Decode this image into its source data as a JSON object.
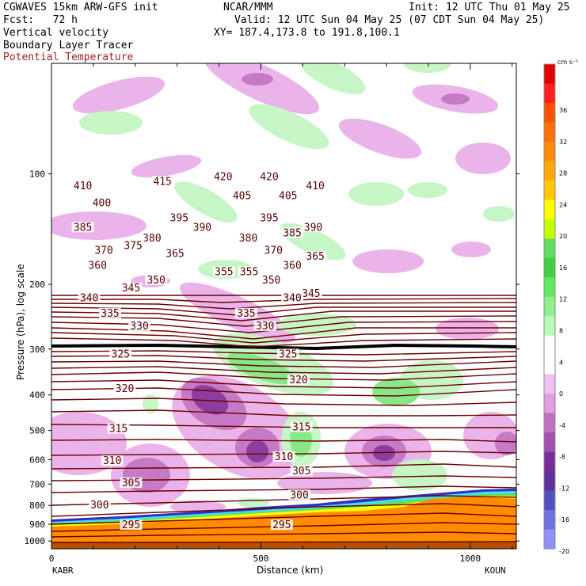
{
  "header": {
    "model": "CGWAVES 15km ARW-GFS init",
    "org": "NCAR/MMM",
    "init": "Init: 12 UTC Thu 01 May 25",
    "fcst": "Fcst:   72 h",
    "valid": "Valid: 12 UTC Sun 04 May 25 (07 CDT Sun 04 May 25)",
    "field1": "Vertical velocity",
    "xy": "XY= 187.4,173.8 to 191.8,100.1",
    "field2": "Boundary Layer Tracer",
    "field3": "Potential Temperature"
  },
  "colors": {
    "contour": "#6b0000",
    "terrain": "#ff8c00",
    "tracer_top": "#3030c0",
    "up_light": "#c6f5c6",
    "up_mid": "#88e888",
    "down_light": "#eab4ea",
    "down_mid": "#c67ac6",
    "down_dark": "#8e3c9e",
    "tropopause": "#000000"
  },
  "chart_data": {
    "type": "heatmap",
    "xlabel": "Distance (km)",
    "ylabel": "Pressure (hPa), log scale",
    "x_ticks": [
      "0",
      "500",
      "1000"
    ],
    "x_end_labels": [
      "KABR",
      "KOUN"
    ],
    "xlim": [
      0,
      1110
    ],
    "y_ticks": [
      "100",
      "200",
      "300",
      "400",
      "500",
      "600",
      "700",
      "800",
      "900",
      "1000"
    ],
    "colorbar": {
      "units": "cm s⁻¹",
      "labels": [
        "36",
        "32",
        "28",
        "24",
        "20",
        "16",
        "12",
        "8",
        "4",
        "0",
        "-4",
        "-8",
        "-12",
        "-16",
        "-20"
      ],
      "colors": [
        "#e00000",
        "#ff2020",
        "#ff5000",
        "#ff7000",
        "#ff8c00",
        "#ffa800",
        "#ffc800",
        "#ffff00",
        "#c8ff00",
        "#60e060",
        "#40d040",
        "#60e860",
        "#90f090",
        "#b8f8b8",
        "#ffffff",
        "#ffffff",
        "#f0c0f0",
        "#e0a0e0",
        "#c070c0",
        "#a050b0",
        "#7a2a9a",
        "#6030a0",
        "#5050c0",
        "#7070e0",
        "#9090ff"
      ]
    },
    "theta_labels": [
      {
        "v": "410",
        "x": 75,
        "p": 108
      },
      {
        "v": "415",
        "x": 265,
        "p": 105
      },
      {
        "v": "420",
        "x": 410,
        "p": 102
      },
      {
        "v": "420",
        "x": 520,
        "p": 102
      },
      {
        "v": "410",
        "x": 630,
        "p": 108
      },
      {
        "v": "400",
        "x": 120,
        "p": 120
      },
      {
        "v": "405",
        "x": 455,
        "p": 115
      },
      {
        "v": "405",
        "x": 565,
        "p": 115
      },
      {
        "v": "385",
        "x": 75,
        "p": 140
      },
      {
        "v": "395",
        "x": 305,
        "p": 132
      },
      {
        "v": "390",
        "x": 360,
        "p": 140
      },
      {
        "v": "395",
        "x": 520,
        "p": 132
      },
      {
        "v": "390",
        "x": 625,
        "p": 140
      },
      {
        "v": "380",
        "x": 240,
        "p": 150
      },
      {
        "v": "380",
        "x": 470,
        "p": 150
      },
      {
        "v": "385",
        "x": 575,
        "p": 145
      },
      {
        "v": "370",
        "x": 125,
        "p": 162
      },
      {
        "v": "375",
        "x": 195,
        "p": 157
      },
      {
        "v": "365",
        "x": 295,
        "p": 165
      },
      {
        "v": "370",
        "x": 530,
        "p": 162
      },
      {
        "v": "365",
        "x": 630,
        "p": 168
      },
      {
        "v": "360",
        "x": 110,
        "p": 178
      },
      {
        "v": "355",
        "x": 412,
        "p": 185
      },
      {
        "v": "355",
        "x": 472,
        "p": 185
      },
      {
        "v": "360",
        "x": 575,
        "p": 178
      },
      {
        "v": "350",
        "x": 250,
        "p": 195
      },
      {
        "v": "350",
        "x": 525,
        "p": 195
      },
      {
        "v": "345",
        "x": 190,
        "p": 205
      },
      {
        "v": "345",
        "x": 620,
        "p": 212
      },
      {
        "v": "340",
        "x": 90,
        "p": 218
      },
      {
        "v": "340",
        "x": 575,
        "p": 218
      },
      {
        "v": "335",
        "x": 140,
        "p": 240
      },
      {
        "v": "335",
        "x": 465,
        "p": 240
      },
      {
        "v": "330",
        "x": 210,
        "p": 260
      },
      {
        "v": "330",
        "x": 510,
        "p": 260
      },
      {
        "v": "325",
        "x": 165,
        "p": 310
      },
      {
        "v": "325",
        "x": 565,
        "p": 310
      },
      {
        "v": "320",
        "x": 175,
        "p": 385
      },
      {
        "v": "320",
        "x": 590,
        "p": 365
      },
      {
        "v": "315",
        "x": 160,
        "p": 495
      },
      {
        "v": "315",
        "x": 597,
        "p": 490
      },
      {
        "v": "310",
        "x": 145,
        "p": 605
      },
      {
        "v": "310",
        "x": 555,
        "p": 590
      },
      {
        "v": "305",
        "x": 190,
        "p": 695
      },
      {
        "v": "305",
        "x": 597,
        "p": 645
      },
      {
        "v": "300",
        "x": 115,
        "p": 800
      },
      {
        "v": "300",
        "x": 592,
        "p": 750
      },
      {
        "v": "295",
        "x": 190,
        "p": 905
      },
      {
        "v": "295",
        "x": 550,
        "p": 905
      }
    ]
  }
}
